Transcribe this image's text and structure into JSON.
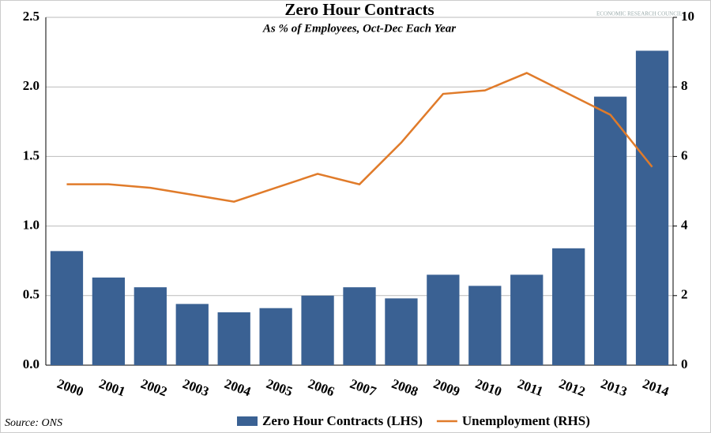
{
  "chart_data": {
    "type": "bar_line",
    "title": "Zero Hour Contracts",
    "subtitle": "As % of Employees, Oct-Dec Each Year",
    "source": "Source: ONS",
    "logo": "ECONOMIC RESEARCH COUNCIL",
    "categories": [
      "2000",
      "2001",
      "2002",
      "2003",
      "2004",
      "2005",
      "2006",
      "2007",
      "2008",
      "2009",
      "2010",
      "2011",
      "2012",
      "2013",
      "2014"
    ],
    "series": [
      {
        "name": "Zero Hour Contracts (LHS)",
        "type": "bar",
        "color": "#3a6193",
        "values": [
          0.82,
          0.63,
          0.56,
          0.44,
          0.38,
          0.41,
          0.5,
          0.56,
          0.48,
          0.65,
          0.57,
          0.65,
          0.84,
          1.93,
          2.26
        ]
      },
      {
        "name": "Unemployment (RHS)",
        "type": "line",
        "axis": "y2",
        "color": "#e07b2a",
        "values": [
          5.2,
          5.2,
          5.1,
          4.9,
          4.7,
          5.1,
          5.5,
          5.2,
          6.4,
          7.8,
          7.9,
          8.4,
          7.8,
          7.2,
          5.7
        ]
      }
    ],
    "ylim": [
      0,
      2.5
    ],
    "yticks": [
      {
        "value": 0,
        "label": "0.0"
      },
      0.5,
      {
        "value": 1,
        "label": "1.0"
      },
      1.5,
      {
        "value": 2,
        "label": "2.0"
      },
      2.5
    ],
    "y2lim": [
      0,
      10
    ],
    "y2ticks": [
      0,
      2,
      4,
      6,
      8,
      10
    ],
    "grid": true
  }
}
